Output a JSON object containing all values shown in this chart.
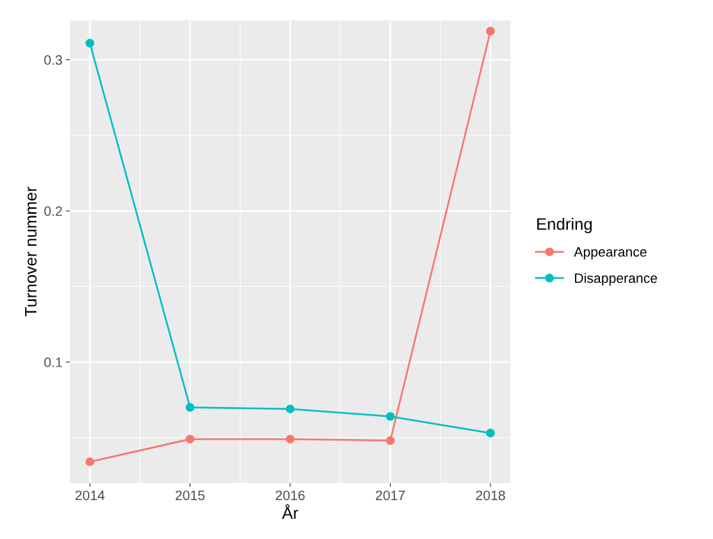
{
  "chart_data": {
    "type": "line",
    "xlabel": "År",
    "ylabel": "Turnover nummer",
    "legend_title": "Endring",
    "x": [
      2014,
      2015,
      2016,
      2017,
      2018
    ],
    "series": [
      {
        "name": "Appearance",
        "color": "#f8766d",
        "values": [
          0.034,
          0.049,
          0.049,
          0.048,
          0.319
        ]
      },
      {
        "name": "Disapperance",
        "color": "#00bfc4",
        "values": [
          0.311,
          0.07,
          0.069,
          0.064,
          0.053
        ]
      }
    ],
    "xlim": [
      2013.8,
      2018.2
    ],
    "xticks": [
      2014,
      2015,
      2016,
      2017,
      2018
    ],
    "ylim": [
      0.02,
      0.326
    ],
    "yticks": [
      0.1,
      0.2,
      0.3
    ],
    "grid": true,
    "legend": "right",
    "marker": "circle",
    "line_style": "solid"
  }
}
